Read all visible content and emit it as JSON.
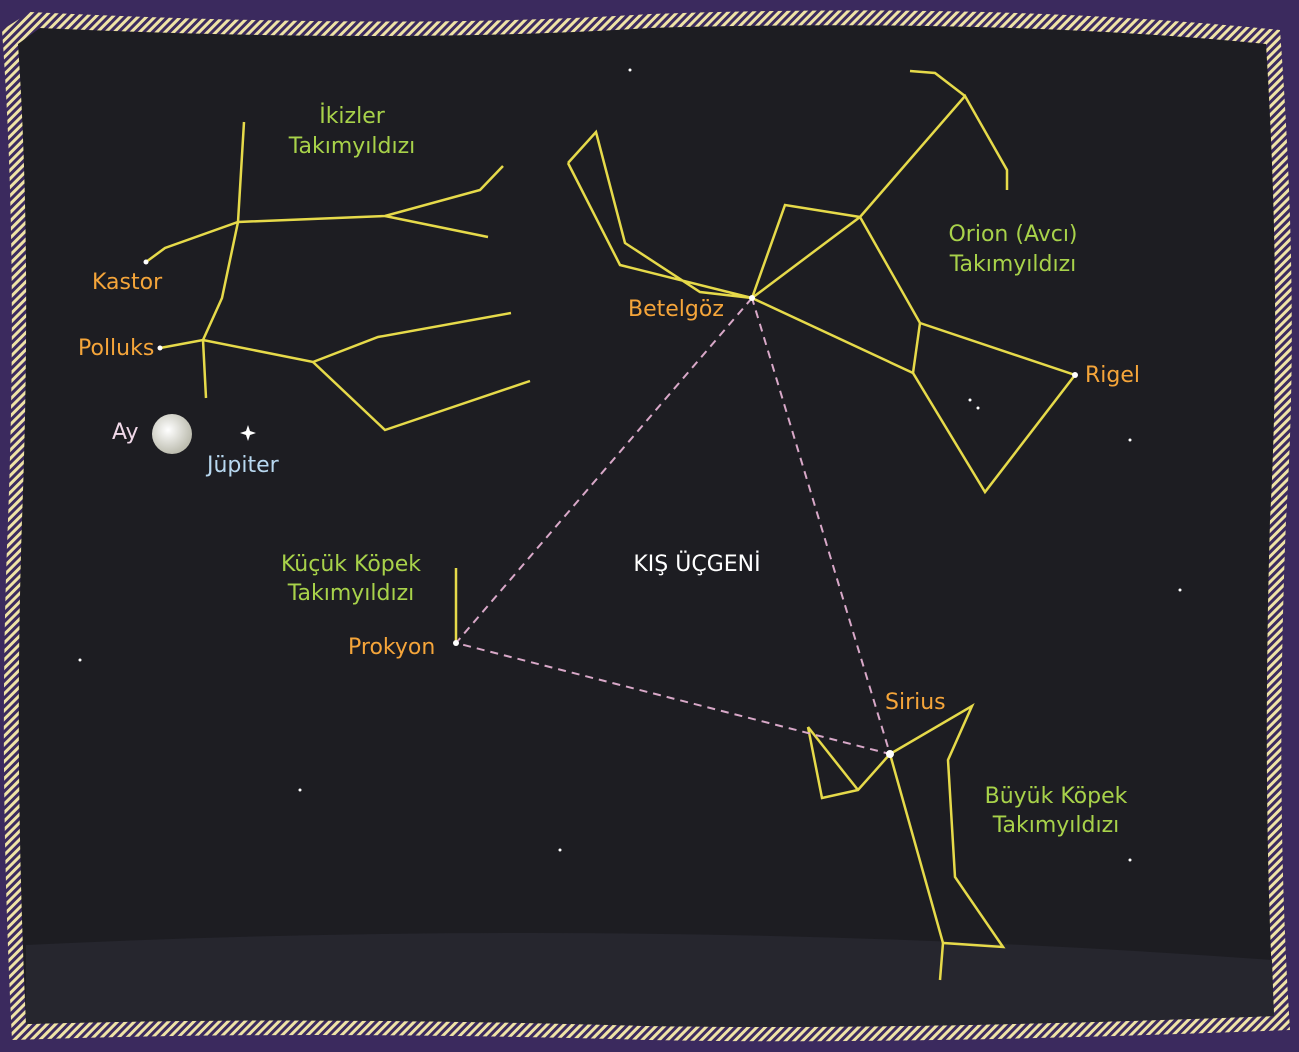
{
  "title": "KIŞ ÜÇGENİ",
  "constellations": [
    {
      "lines": [
        "İkizler",
        "Takımyıldızı"
      ]
    },
    {
      "lines": [
        "Orion (Avcı)",
        "Takımyıldızı"
      ]
    },
    {
      "lines": [
        "Küçük Köpek",
        "Takımyıldızı"
      ]
    },
    {
      "lines": [
        "Büyük Köpek",
        "Takımyıldızı"
      ]
    }
  ],
  "stars": [
    "Kastor",
    "Polluks",
    "Betelgöz",
    "Rigel",
    "Prokyon",
    "Sirius"
  ],
  "bodies": [
    "Ay",
    "Jüpiter"
  ]
}
